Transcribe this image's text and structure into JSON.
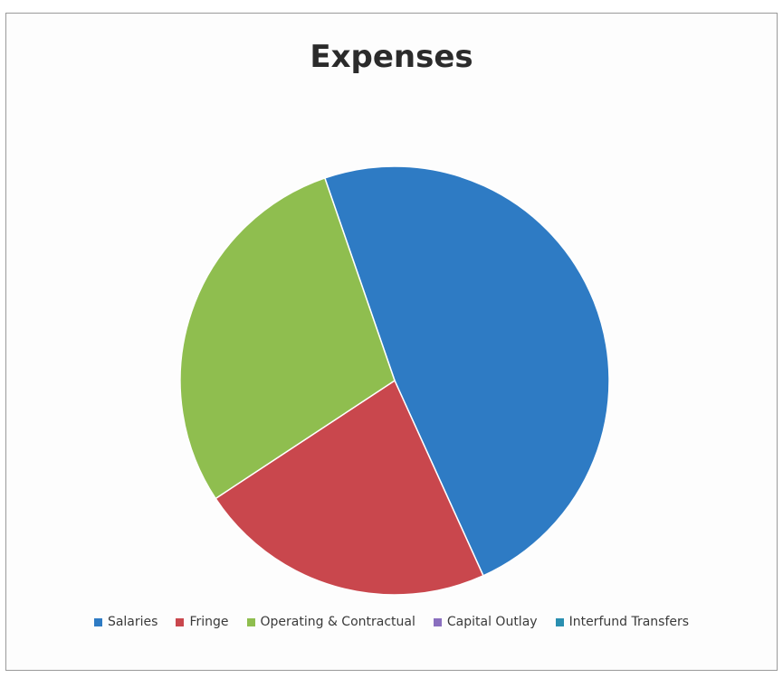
{
  "chart_data": {
    "type": "pie",
    "title": "Expenses",
    "slices": [
      {
        "label": "Salaries",
        "value": 48.5,
        "color": "#2e7bc4"
      },
      {
        "label": "Fringe",
        "value": 22.5,
        "color": "#c9474d"
      },
      {
        "label": "Operating & Contractual",
        "value": 29.0,
        "color": "#8fbe4f"
      },
      {
        "label": "Capital Outlay",
        "value": 0,
        "color": "#8a6fbf"
      },
      {
        "label": "Interfund Transfers",
        "value": 0,
        "color": "#2a8fb0"
      }
    ],
    "start_angle_deg": -19,
    "legend_position": "bottom"
  }
}
